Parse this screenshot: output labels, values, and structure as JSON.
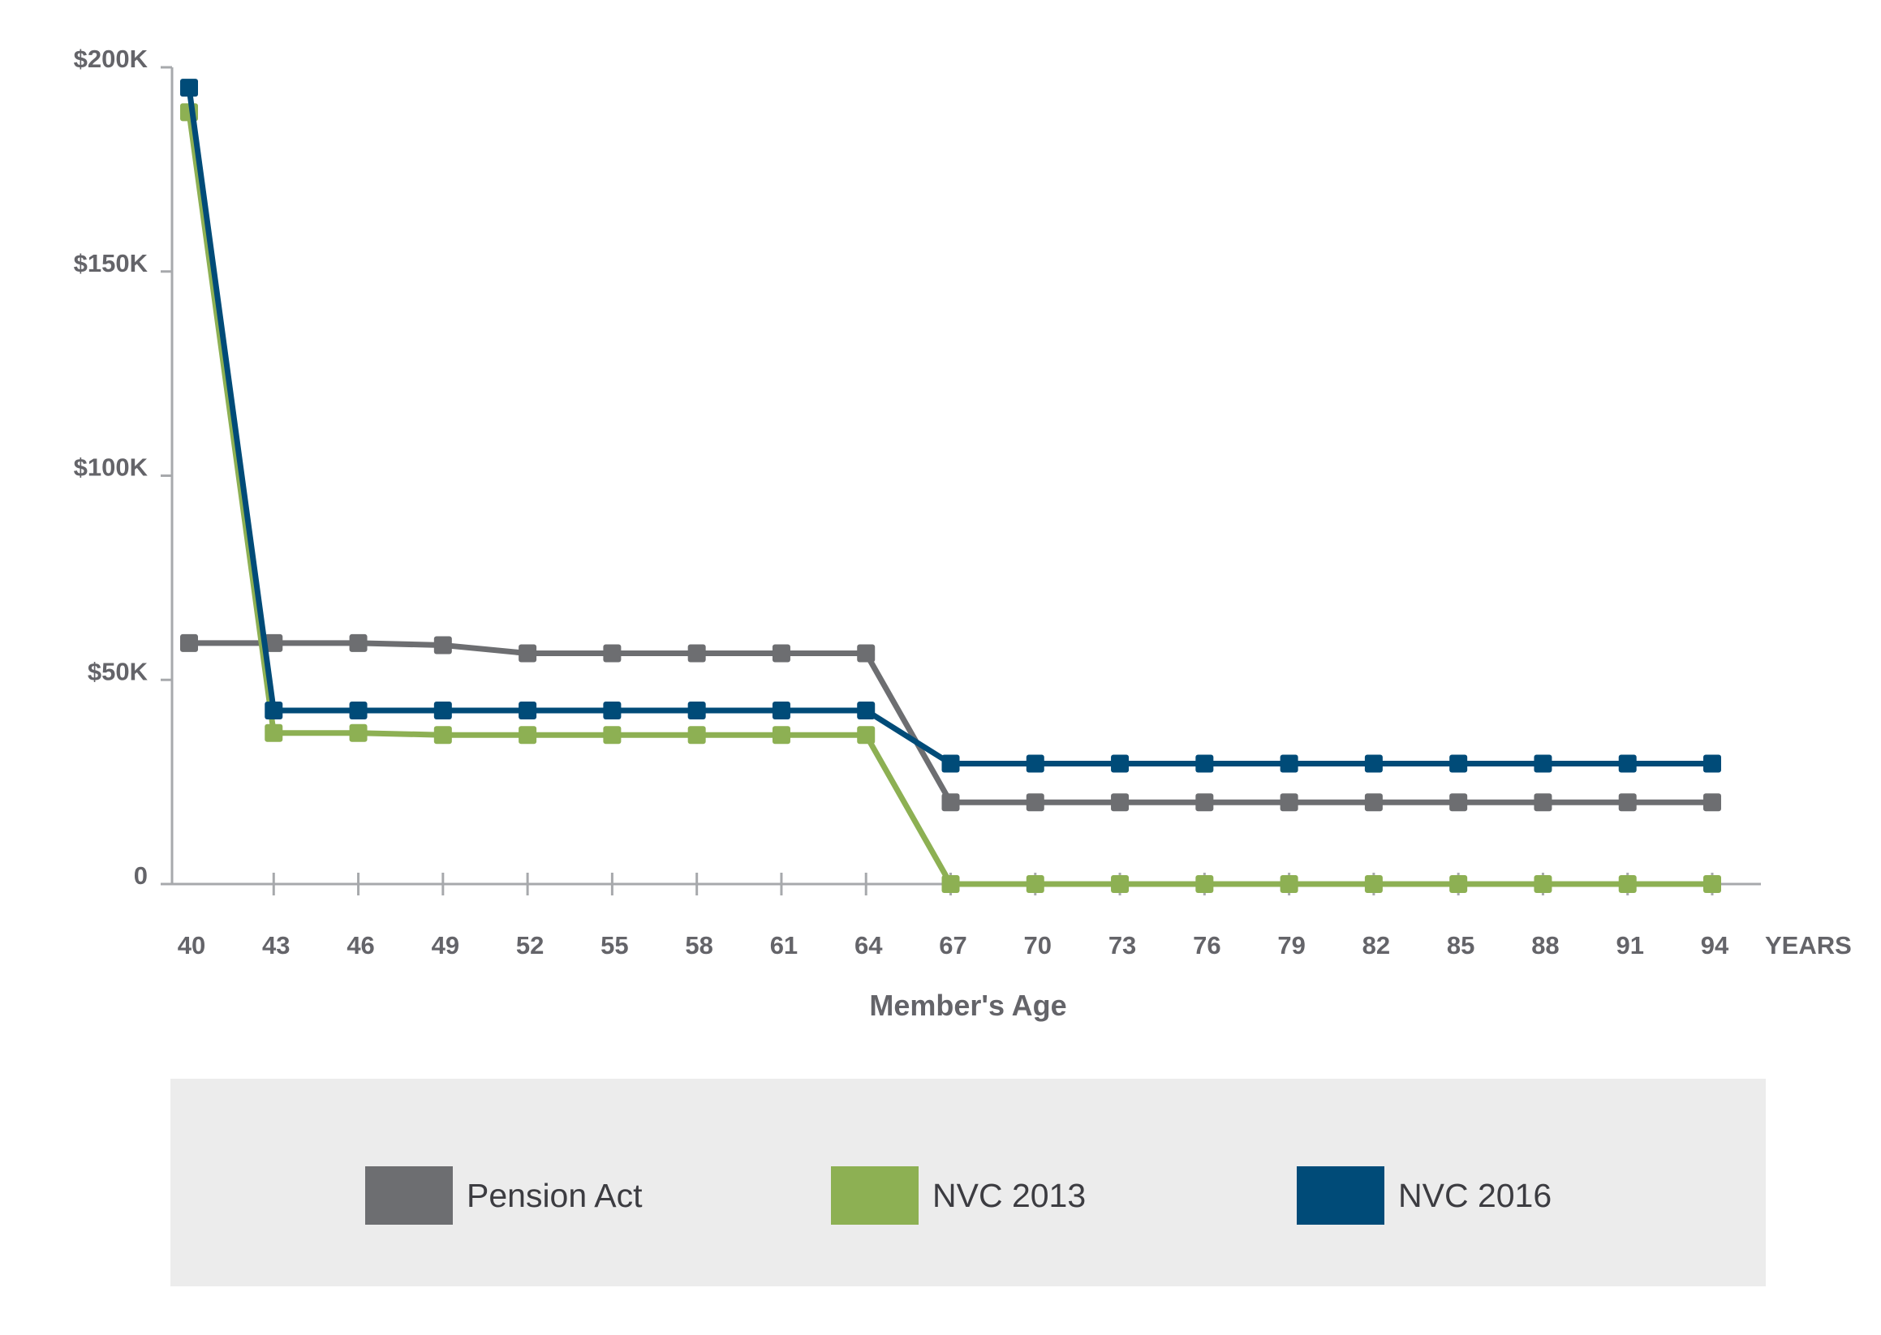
{
  "chart_data": {
    "type": "line",
    "xlabel": "Member's Age",
    "x_unit_label": "YEARS",
    "ylabel": "",
    "x": [
      40,
      43,
      46,
      49,
      52,
      55,
      58,
      61,
      64,
      67,
      70,
      73,
      76,
      79,
      82,
      85,
      88,
      91,
      94
    ],
    "x_tick_labels": [
      "40",
      "43",
      "46",
      "49",
      "52",
      "55",
      "58",
      "61",
      "64",
      "67",
      "70",
      "73",
      "76",
      "79",
      "82",
      "85",
      "88",
      "91",
      "94"
    ],
    "ylim": [
      0,
      200000
    ],
    "y_ticks": [
      0,
      50000,
      100000,
      150000,
      200000
    ],
    "y_tick_labels": [
      "0",
      "$50K",
      "$100K",
      "$150K",
      "$200K"
    ],
    "grid": false,
    "legend_position": "bottom",
    "series": [
      {
        "name": "Pension Act",
        "color": "#6d6e71",
        "values": [
          59000,
          59000,
          59000,
          58500,
          56500,
          56500,
          56500,
          56500,
          56500,
          20000,
          20000,
          20000,
          20000,
          20000,
          20000,
          20000,
          20000,
          20000,
          20000
        ]
      },
      {
        "name": "NVC 2013",
        "color": "#8db053",
        "values": [
          189000,
          37000,
          37000,
          36500,
          36500,
          36500,
          36500,
          36500,
          36500,
          0,
          0,
          0,
          0,
          0,
          0,
          0,
          0,
          0,
          0
        ]
      },
      {
        "name": "NVC 2016",
        "color": "#004b78",
        "values": [
          195000,
          42500,
          42500,
          42500,
          42500,
          42500,
          42500,
          42500,
          42500,
          29500,
          29500,
          29500,
          29500,
          29500,
          29500,
          29500,
          29500,
          29500,
          29500
        ]
      }
    ]
  }
}
